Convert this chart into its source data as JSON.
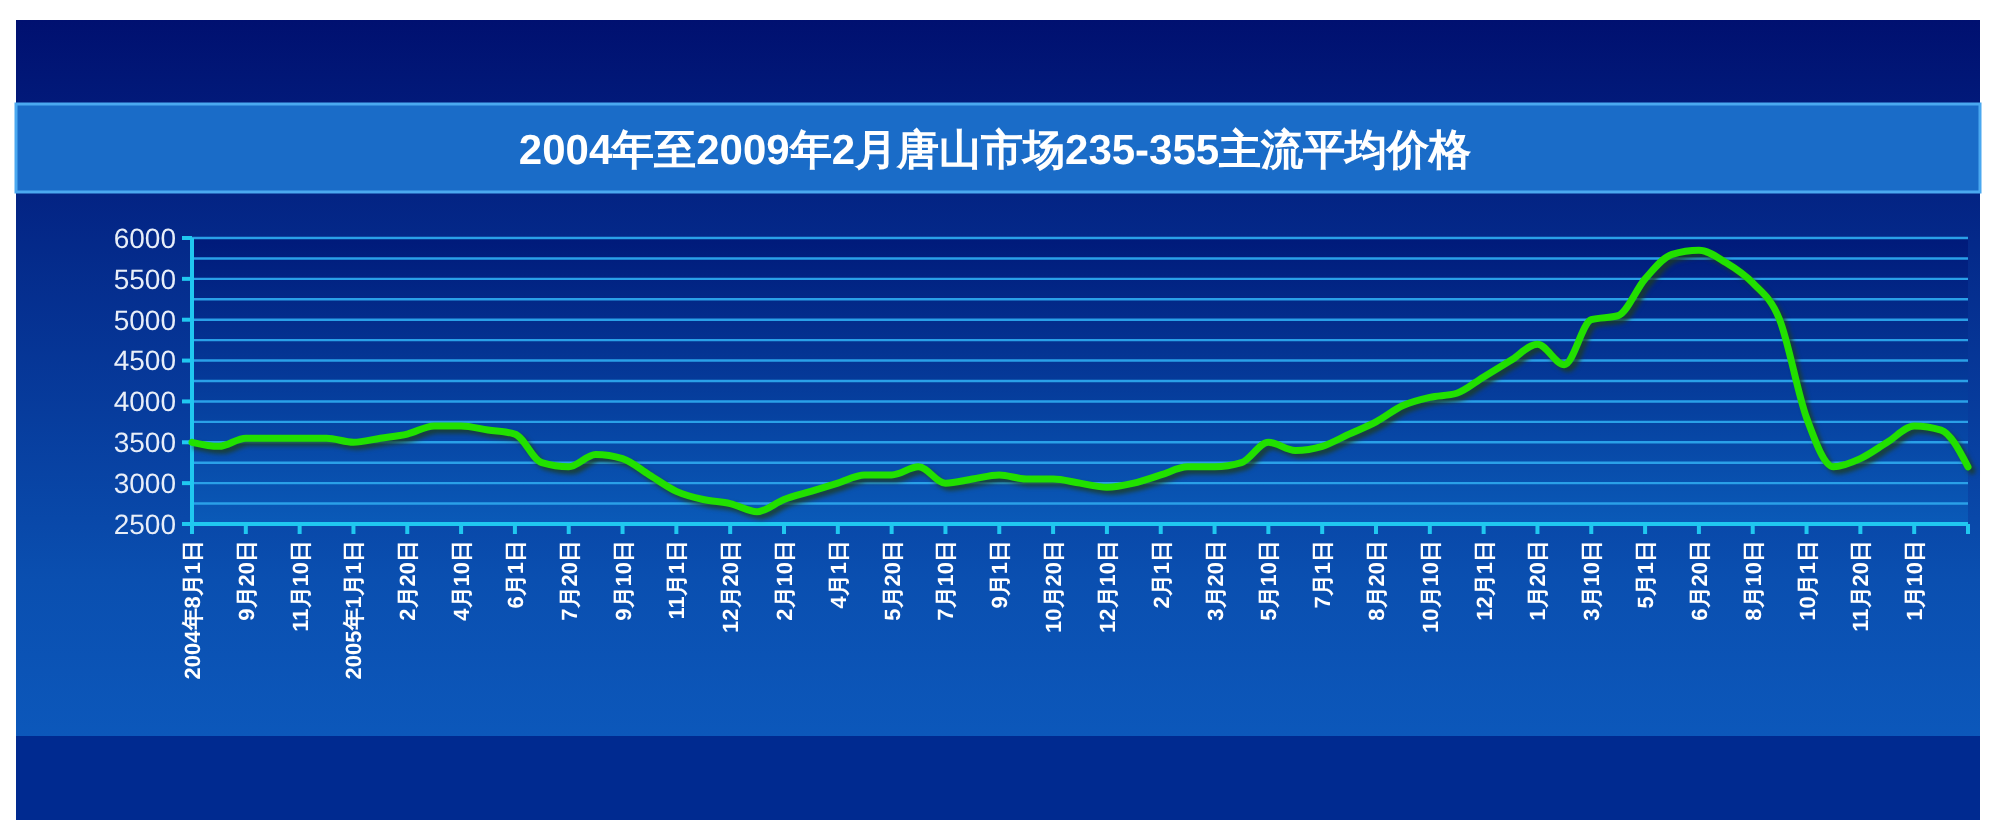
{
  "chart_data": {
    "type": "line",
    "title": "2004年至2009年2月唐山市场235-355主流平均价格",
    "categories": [
      "2004年8月1日",
      null,
      "9月20日",
      null,
      "11月10日",
      null,
      "2005年1月1日",
      null,
      "2月20日",
      null,
      "4月10日",
      null,
      "6月1日",
      null,
      "7月20日",
      null,
      "9月10日",
      null,
      "11月1日",
      null,
      "12月20日",
      null,
      "2月10日",
      null,
      "4月1日",
      null,
      "5月20日",
      null,
      "7月10日",
      null,
      "9月1日",
      null,
      "10月20日",
      null,
      "12月10日",
      null,
      "2月1日",
      null,
      "3月20日",
      null,
      "5月10日",
      null,
      "7月1日",
      null,
      "8月20日",
      null,
      "10月10日",
      null,
      "12月1日",
      null,
      "1月20日",
      null,
      "3月10日",
      null,
      "5月1日",
      null,
      "6月20日",
      null,
      "8月10日",
      null,
      "10月1日",
      null,
      "11月20日",
      null,
      "1月10日",
      null,
      null
    ],
    "series": [
      {
        "color": "#22e000",
        "values": [
          3500,
          3450,
          3550,
          3550,
          3550,
          3550,
          3500,
          3550,
          3600,
          3700,
          3700,
          3650,
          3600,
          3250,
          3200,
          3350,
          3300,
          3100,
          2900,
          2800,
          2750,
          2650,
          2800,
          2900,
          3000,
          3100,
          3100,
          3200,
          3000,
          3050,
          3100,
          3050,
          3050,
          3000,
          2950,
          3000,
          3100,
          3200,
          3200,
          3250,
          3500,
          3400,
          3450,
          3600,
          3750,
          3950,
          4050,
          4100,
          4300,
          4500,
          4700,
          4450,
          5000,
          5050,
          5500,
          5800,
          5850,
          5700,
          5450,
          5000,
          3800,
          3200,
          3300,
          3500,
          3700,
          3650,
          3200
        ]
      }
    ],
    "ylim": [
      2500,
      6000
    ],
    "yticks": [
      2500,
      {
        "value": 2750,
        "label": null
      },
      3000,
      {
        "value": 3250,
        "label": null
      },
      3500,
      {
        "value": 3750,
        "label": null
      },
      4000,
      {
        "value": 4250,
        "label": null
      },
      4500,
      {
        "value": 4750,
        "label": null
      },
      5000,
      {
        "value": 5250,
        "label": null
      },
      5500,
      {
        "value": 5750,
        "label": null
      },
      6000
    ],
    "grid": "y",
    "line_style": "solid",
    "marker": "none"
  }
}
